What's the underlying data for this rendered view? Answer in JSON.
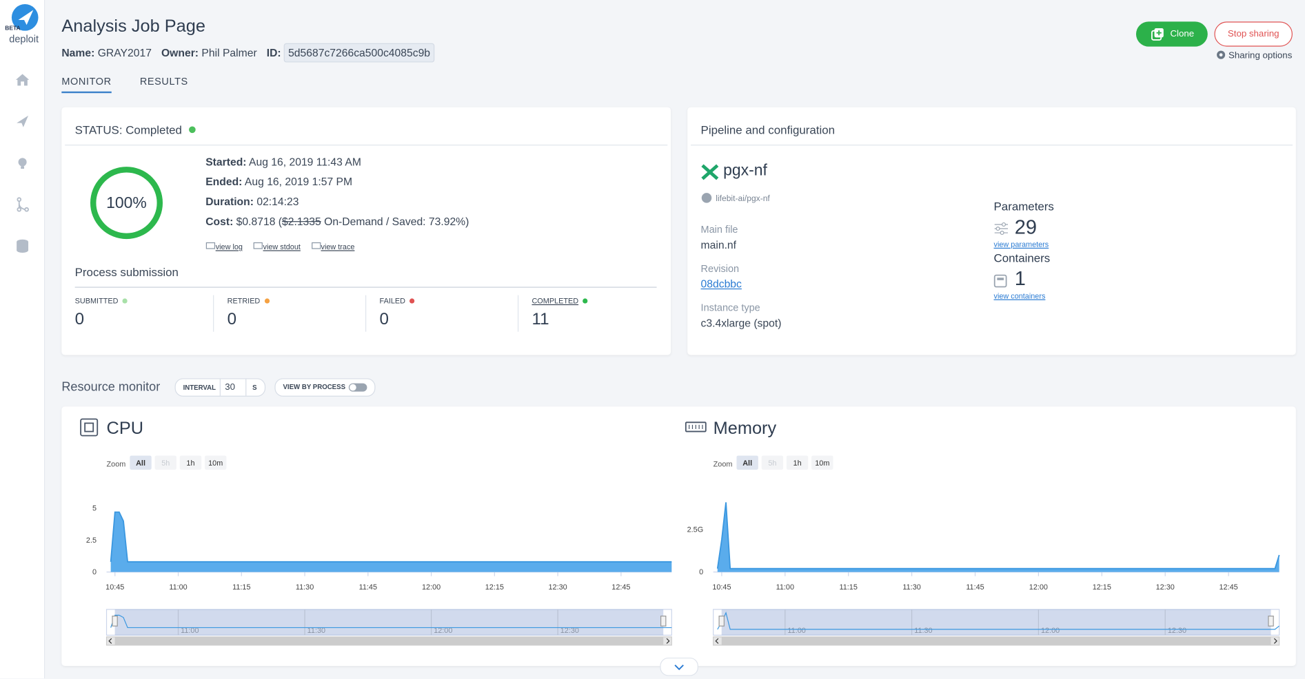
{
  "sidebar": {
    "badge": "BETA",
    "brand": "deploit"
  },
  "header": {
    "title": "Analysis Job Page",
    "name_label": "Name:",
    "name": "GRAY2017",
    "owner_label": "Owner:",
    "owner": "Phil Palmer",
    "id_label": "ID:",
    "id": "5d5687c7266ca500c4085c9b"
  },
  "actions": {
    "clone": "Clone",
    "stop": "Stop sharing",
    "sharing": "Sharing options"
  },
  "tabs": [
    "MONITOR",
    "RESULTS"
  ],
  "status": {
    "title": "STATUS: Completed",
    "progress": "100%",
    "started_label": "Started:",
    "started": "Aug 16, 2019 11:43 AM",
    "ended_label": "Ended:",
    "ended": "Aug 16, 2019 1:57 PM",
    "duration_label": "Duration:",
    "duration": "02:14:23",
    "cost_label": "Cost:",
    "cost": "$0.8718 (",
    "on_demand": "$2.1335",
    "cost_rest": " On-Demand / Saved: 73.92%)",
    "links": [
      "view log",
      "view stdout",
      "view trace"
    ]
  },
  "process": {
    "title": "Process submission",
    "stats": [
      {
        "label": "SUBMITTED",
        "value": 0,
        "color": "#a8e0a8"
      },
      {
        "label": "RETRIED",
        "value": 0,
        "color": "#f5a142"
      },
      {
        "label": "FAILED",
        "value": 0,
        "color": "#e05252"
      },
      {
        "label": "COMPLETED",
        "value": 11,
        "color": "#2db84d"
      }
    ]
  },
  "pipeline": {
    "title": "Pipeline and configuration",
    "name": "pgx-nf",
    "repo": "lifebit-ai/pgx-nf",
    "main_file_label": "Main file",
    "main_file": "main.nf",
    "revision_label": "Revision",
    "revision": "08dcbbc",
    "instance_label": "Instance type",
    "instance": "c3.4xlarge (spot)",
    "parameters_label": "Parameters",
    "parameters": 29,
    "view_parameters": "view parameters",
    "containers_label": "Containers",
    "containers": 1,
    "view_containers": "view containers"
  },
  "resource_monitor": {
    "title": "Resource monitor",
    "interval_label": "INTERVAL",
    "interval": 30,
    "interval_unit": "S",
    "view_by_process": "VIEW BY PROCESS"
  },
  "charts": [
    {
      "type": "area",
      "title": "CPU",
      "zoom_label": "Zoom",
      "zoom_options": [
        "All",
        "5h",
        "1h",
        "10m"
      ],
      "color": "#5aacec",
      "x": [
        "10:44",
        "10:45",
        "10:46",
        "10:47",
        "10:48",
        "12:57"
      ],
      "values": [
        0.8,
        4.7,
        4.7,
        4.0,
        0.8,
        0.8
      ],
      "xlim": [
        "10:43",
        "12:57"
      ],
      "ylim": [
        0,
        6
      ],
      "yticks": [
        0,
        2.5,
        5
      ],
      "xticks": [
        "10:45",
        "11:00",
        "11:15",
        "11:30",
        "11:45",
        "12:00",
        "12:15",
        "12:30",
        "12:45"
      ],
      "navigator_ticks": [
        "11:00",
        "11:30",
        "12:00",
        "12:30"
      ]
    },
    {
      "type": "area",
      "title": "Memory",
      "zoom_label": "Zoom",
      "zoom_options": [
        "All",
        "5h",
        "1h",
        "10m"
      ],
      "color": "#5aacec",
      "x": [
        "10:44",
        "10:45",
        "10:46",
        "10:47",
        "12:56",
        "12:57"
      ],
      "values": [
        0.2,
        1.9,
        4.1,
        0.2,
        0.2,
        1.0
      ],
      "xlim": [
        "10:43",
        "12:57"
      ],
      "ylim": [
        0,
        4.5
      ],
      "yticks": [
        0,
        {
          "value": 2.5,
          "label": "2.5G"
        }
      ],
      "xticks": [
        "10:45",
        "11:00",
        "11:15",
        "11:30",
        "11:45",
        "12:00",
        "12:15",
        "12:30",
        "12:45"
      ],
      "navigator_ticks": [
        "11:00",
        "11:30",
        "12:00",
        "12:30"
      ]
    }
  ]
}
